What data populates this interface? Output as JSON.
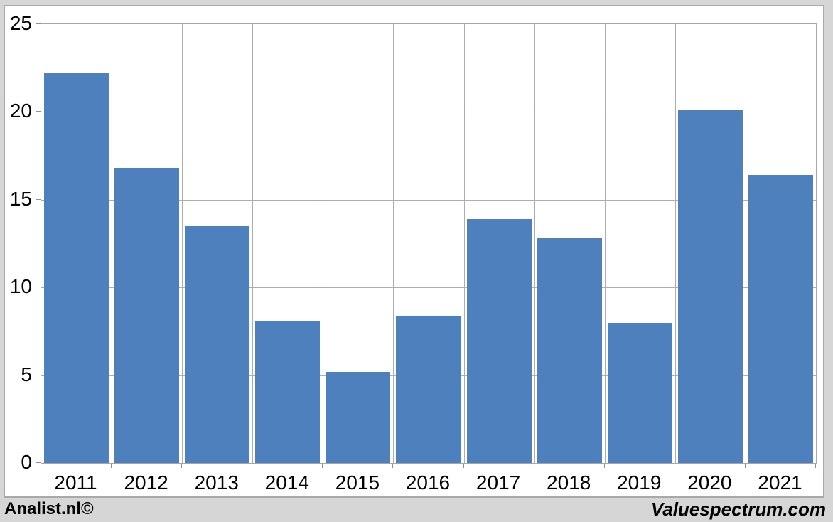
{
  "footer": {
    "left": "Analist.nl©",
    "right": "Valuespectrum.com"
  },
  "chart_data": {
    "type": "bar",
    "categories": [
      "2011",
      "2012",
      "2013",
      "2014",
      "2015",
      "2016",
      "2017",
      "2018",
      "2019",
      "2020",
      "2021"
    ],
    "values": [
      22.2,
      16.8,
      13.5,
      8.1,
      5.2,
      8.4,
      13.9,
      12.8,
      8.0,
      20.1,
      16.4
    ],
    "title": "",
    "xlabel": "",
    "ylabel": "",
    "ylim": [
      0,
      25
    ],
    "yticks": [
      0,
      5,
      10,
      15,
      20,
      25
    ],
    "grid": true,
    "legend": "none",
    "bar_color": "#4d80bd",
    "gridline_color": "#adadad",
    "plot_border_color": "#a6a6a6",
    "plot_bg": "#ffffff",
    "outer_bg": "#d6d6d6"
  }
}
